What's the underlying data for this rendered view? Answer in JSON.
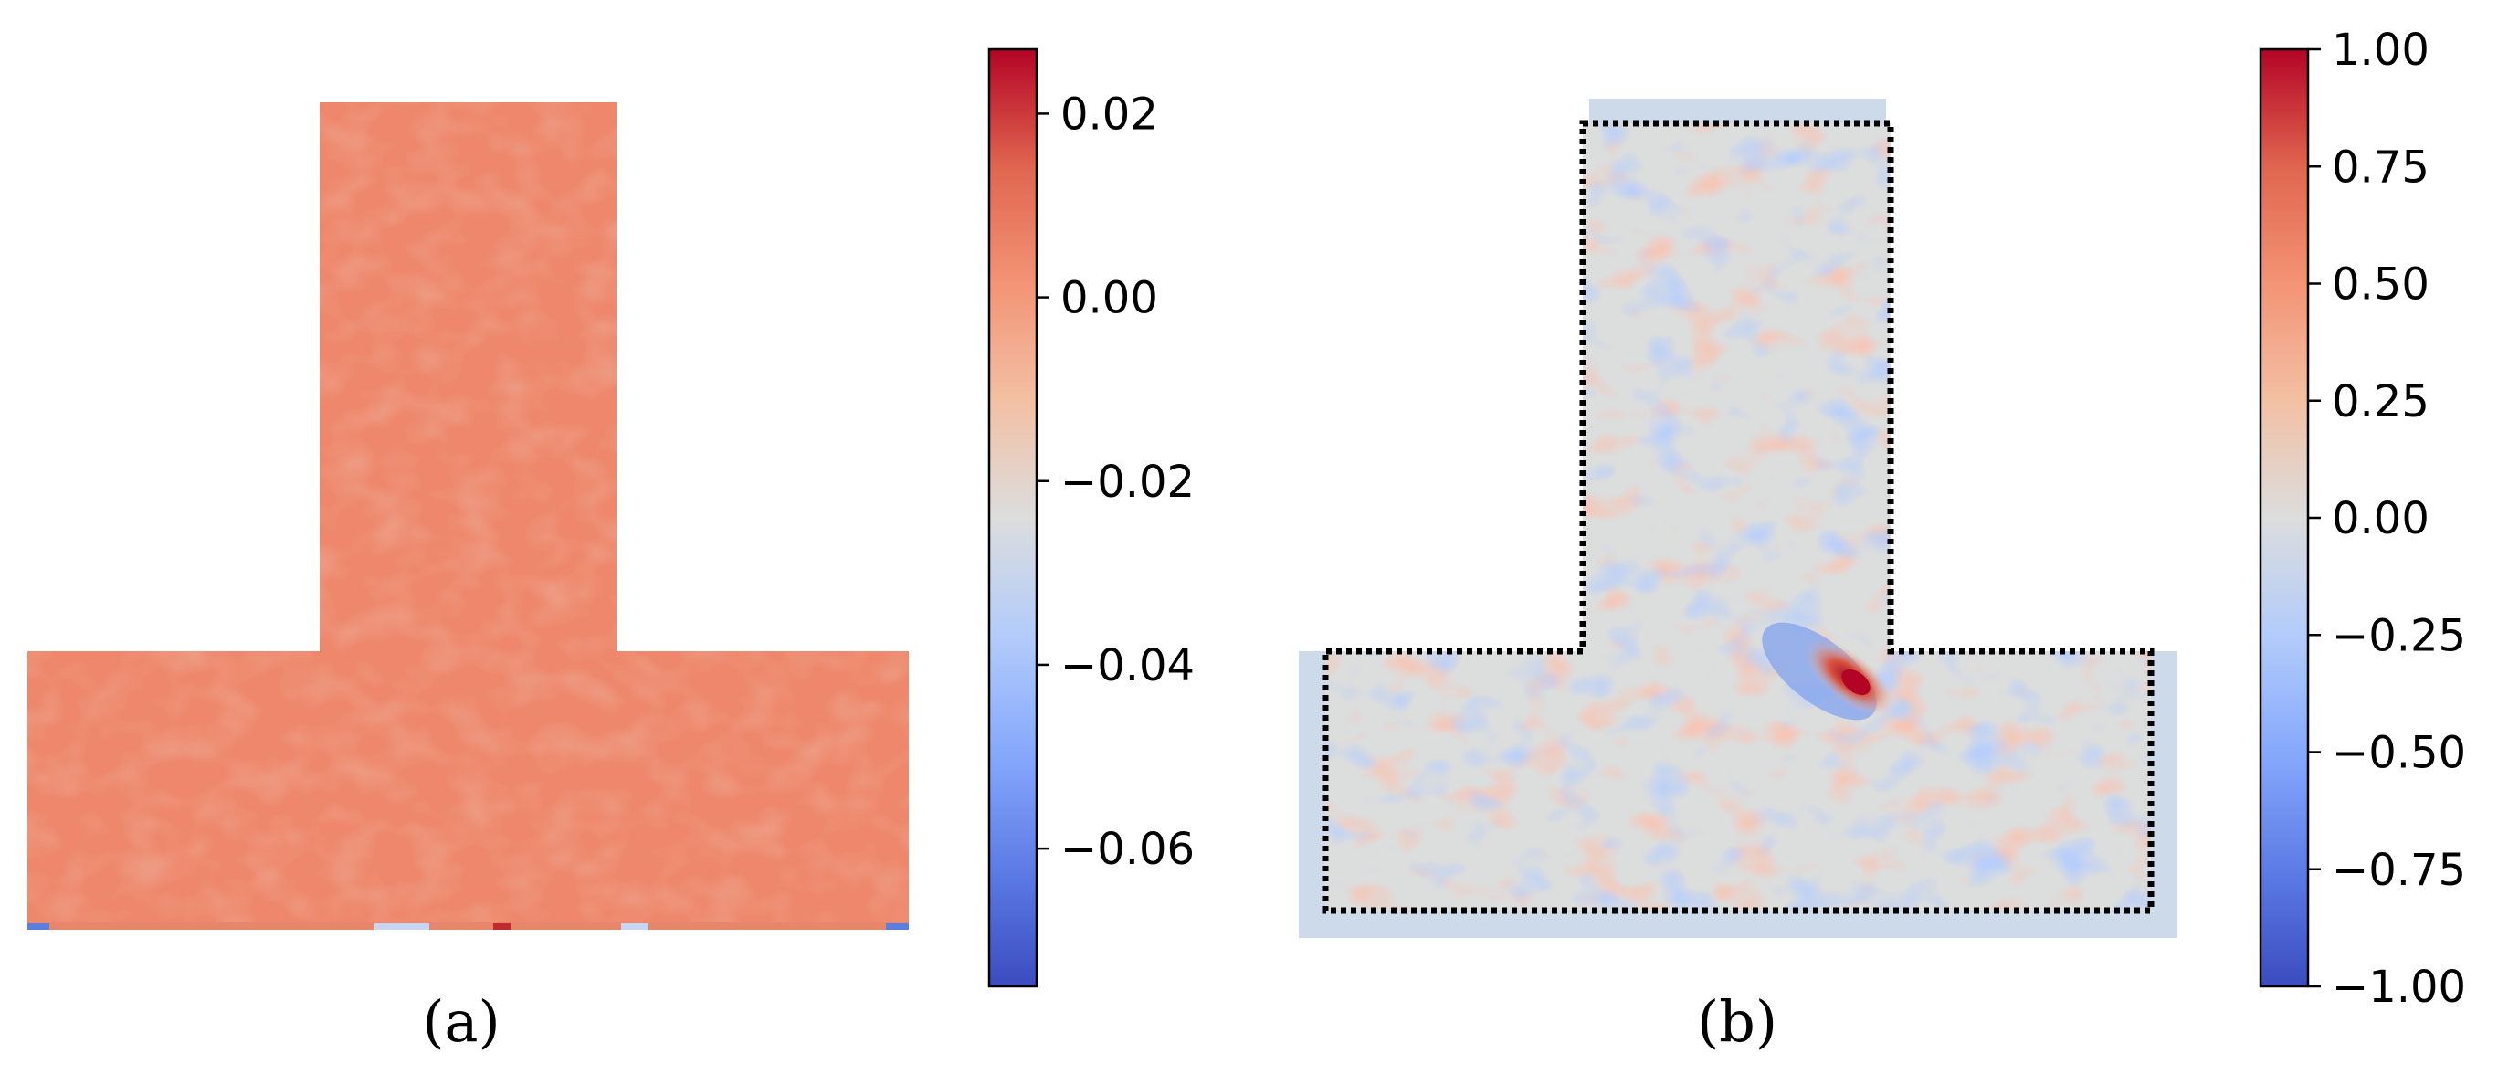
{
  "chart_data": [
    {
      "type": "heatmap",
      "caption": "(a)",
      "field": "coolwarm scalar field on a T-shaped domain",
      "colormap": "coolwarm",
      "value_range": [
        -0.075,
        0.027
      ],
      "typical_value": 0.005,
      "colorbar": {
        "ticks": [
          0.02,
          0.0,
          -0.02,
          -0.04,
          -0.06
        ],
        "tick_labels": [
          "0.02",
          "0.00",
          "−0.02",
          "−0.04",
          "−0.06"
        ]
      },
      "dashed_outline": false
    },
    {
      "type": "heatmap",
      "caption": "(b)",
      "colormap": "coolwarm",
      "value_range": [
        -1.0,
        1.0
      ],
      "typical_value": 0.0,
      "colorbar": {
        "ticks": [
          1.0,
          0.75,
          0.5,
          0.25,
          0.0,
          -0.25,
          -0.5,
          -0.75,
          -1.0
        ],
        "tick_labels": [
          "1.00",
          "0.75",
          "0.50",
          "0.25",
          "0.00",
          "−0.25",
          "−0.50",
          "−0.75",
          "−1.00"
        ]
      },
      "dashed_outline": true,
      "hotspot_value": 1.0
    }
  ]
}
